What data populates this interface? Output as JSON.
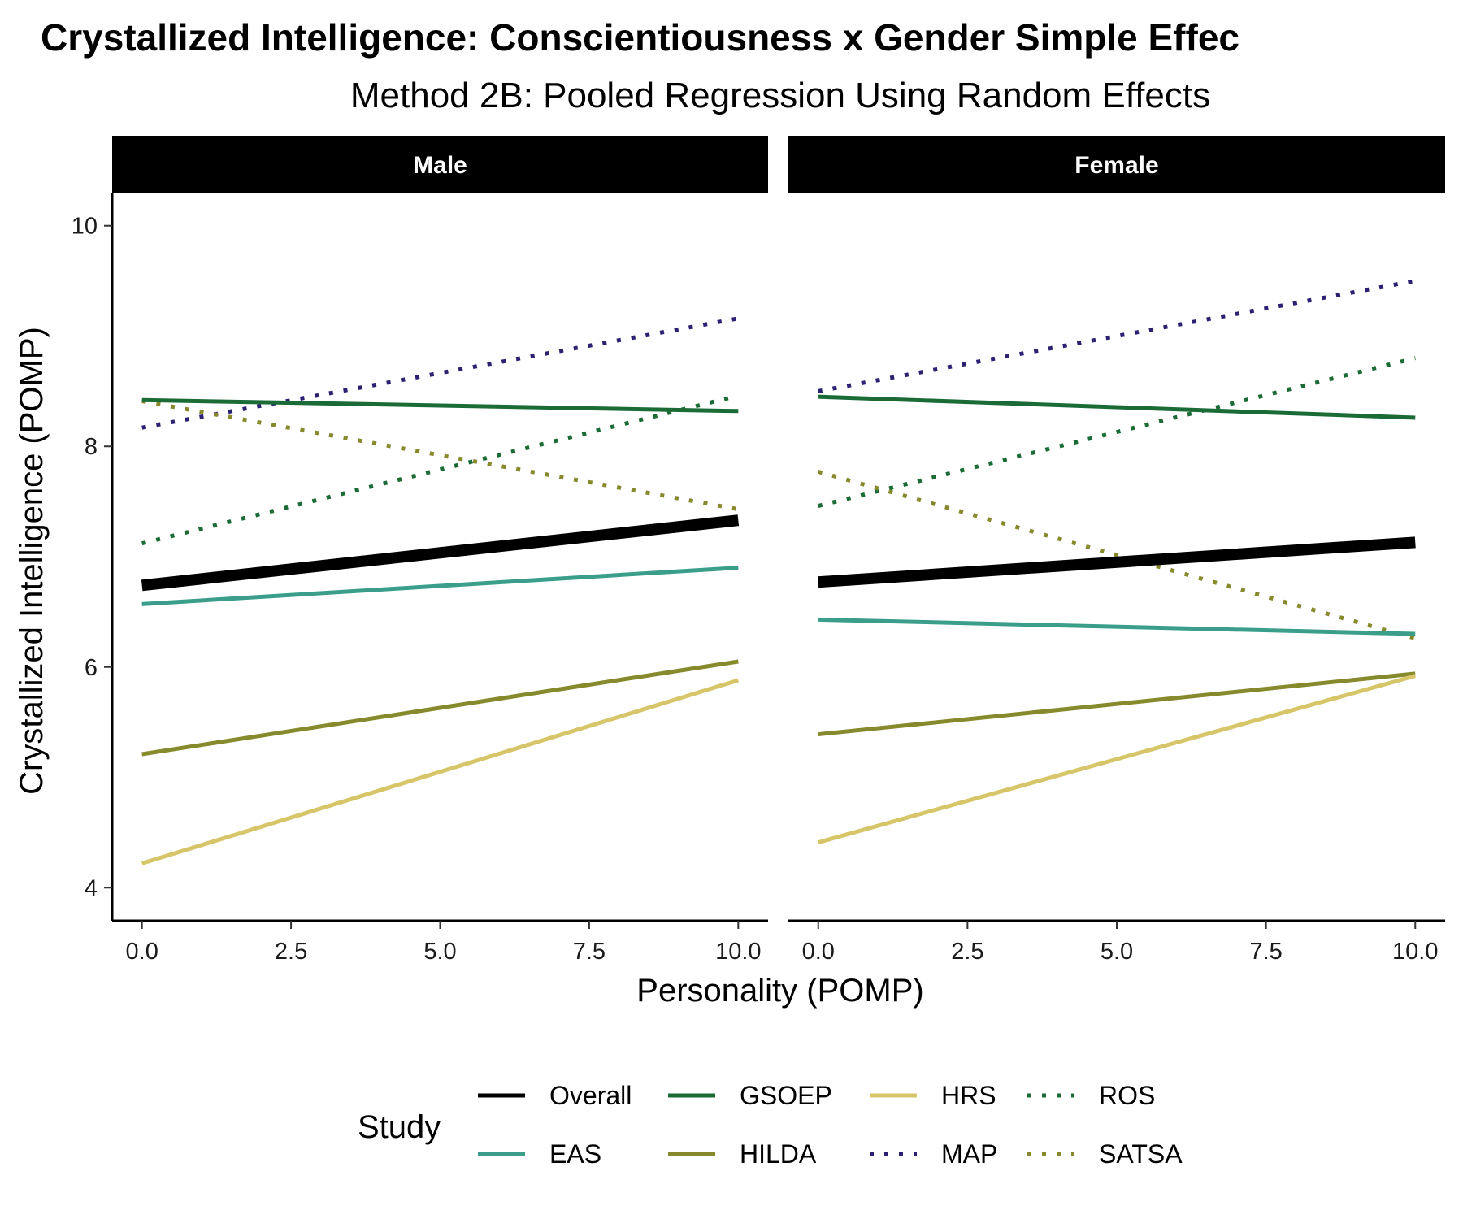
{
  "chart_data": {
    "type": "line",
    "title": "Crystallized Intelligence: Conscientiousness x Gender Simple Effec",
    "subtitle": "Method 2B: Pooled Regression Using Random Effects",
    "xlabel": "Personality (POMP)",
    "ylabel": "Crystallized Intelligence (POMP)",
    "xlim": [
      -0.5,
      10.5
    ],
    "ylim": [
      3.7,
      10.3
    ],
    "x_ticks": [
      0,
      2.5,
      5,
      7.5,
      10
    ],
    "x_tick_labels": [
      "0.0",
      "2.5",
      "5.0",
      "7.5",
      "10.0"
    ],
    "y_ticks": [
      4,
      6,
      8,
      10
    ],
    "y_tick_labels": [
      "4",
      "6",
      "8",
      "10"
    ],
    "grid": false,
    "legend": {
      "title": "Study",
      "placement": "bottom",
      "entries": [
        {
          "label": "Overall",
          "color": "#000000",
          "linetype": "solid"
        },
        {
          "label": "EAS",
          "color": "#3a9e8a",
          "linetype": "solid"
        },
        {
          "label": "GSOEP",
          "color": "#1a6b35",
          "linetype": "solid"
        },
        {
          "label": "HILDA",
          "color": "#868a2c",
          "linetype": "solid"
        },
        {
          "label": "HRS",
          "color": "#d7c669",
          "linetype": "solid"
        },
        {
          "label": "MAP",
          "color": "#2a2173",
          "linetype": "dotted"
        },
        {
          "label": "ROS",
          "color": "#1a6b35",
          "linetype": "dotted"
        },
        {
          "label": "SATSA",
          "color": "#868a2c",
          "linetype": "dotted"
        }
      ]
    },
    "panels": [
      {
        "label": "Male",
        "series": [
          {
            "name": "MAP",
            "x": [
              0,
              10
            ],
            "y": [
              8.17,
              9.16
            ]
          },
          {
            "name": "ROS",
            "x": [
              0,
              10
            ],
            "y": [
              7.12,
              8.46
            ]
          },
          {
            "name": "SATSA",
            "x": [
              0,
              10
            ],
            "y": [
              8.41,
              7.43
            ]
          },
          {
            "name": "GSOEP",
            "x": [
              0,
              10
            ],
            "y": [
              8.42,
              8.32
            ]
          },
          {
            "name": "EAS",
            "x": [
              0,
              10
            ],
            "y": [
              6.57,
              6.9
            ]
          },
          {
            "name": "HILDA",
            "x": [
              0,
              10
            ],
            "y": [
              5.21,
              6.05
            ]
          },
          {
            "name": "HRS",
            "x": [
              0,
              10
            ],
            "y": [
              4.22,
              5.88
            ]
          },
          {
            "name": "Overall",
            "x": [
              0,
              10
            ],
            "y": [
              6.74,
              7.33
            ]
          }
        ]
      },
      {
        "label": "Female",
        "series": [
          {
            "name": "MAP",
            "x": [
              0,
              10
            ],
            "y": [
              8.5,
              9.5
            ]
          },
          {
            "name": "ROS",
            "x": [
              0,
              10
            ],
            "y": [
              7.46,
              8.8
            ]
          },
          {
            "name": "SATSA",
            "x": [
              0,
              10
            ],
            "y": [
              7.77,
              6.26
            ]
          },
          {
            "name": "GSOEP",
            "x": [
              0,
              10
            ],
            "y": [
              8.45,
              8.26
            ]
          },
          {
            "name": "EAS",
            "x": [
              0,
              10
            ],
            "y": [
              6.43,
              6.3
            ]
          },
          {
            "name": "HILDA",
            "x": [
              0,
              10
            ],
            "y": [
              5.39,
              5.94
            ]
          },
          {
            "name": "HRS",
            "x": [
              0,
              10
            ],
            "y": [
              4.41,
              5.92
            ]
          },
          {
            "name": "Overall",
            "x": [
              0,
              10
            ],
            "y": [
              6.77,
              7.13
            ]
          }
        ]
      }
    ]
  }
}
